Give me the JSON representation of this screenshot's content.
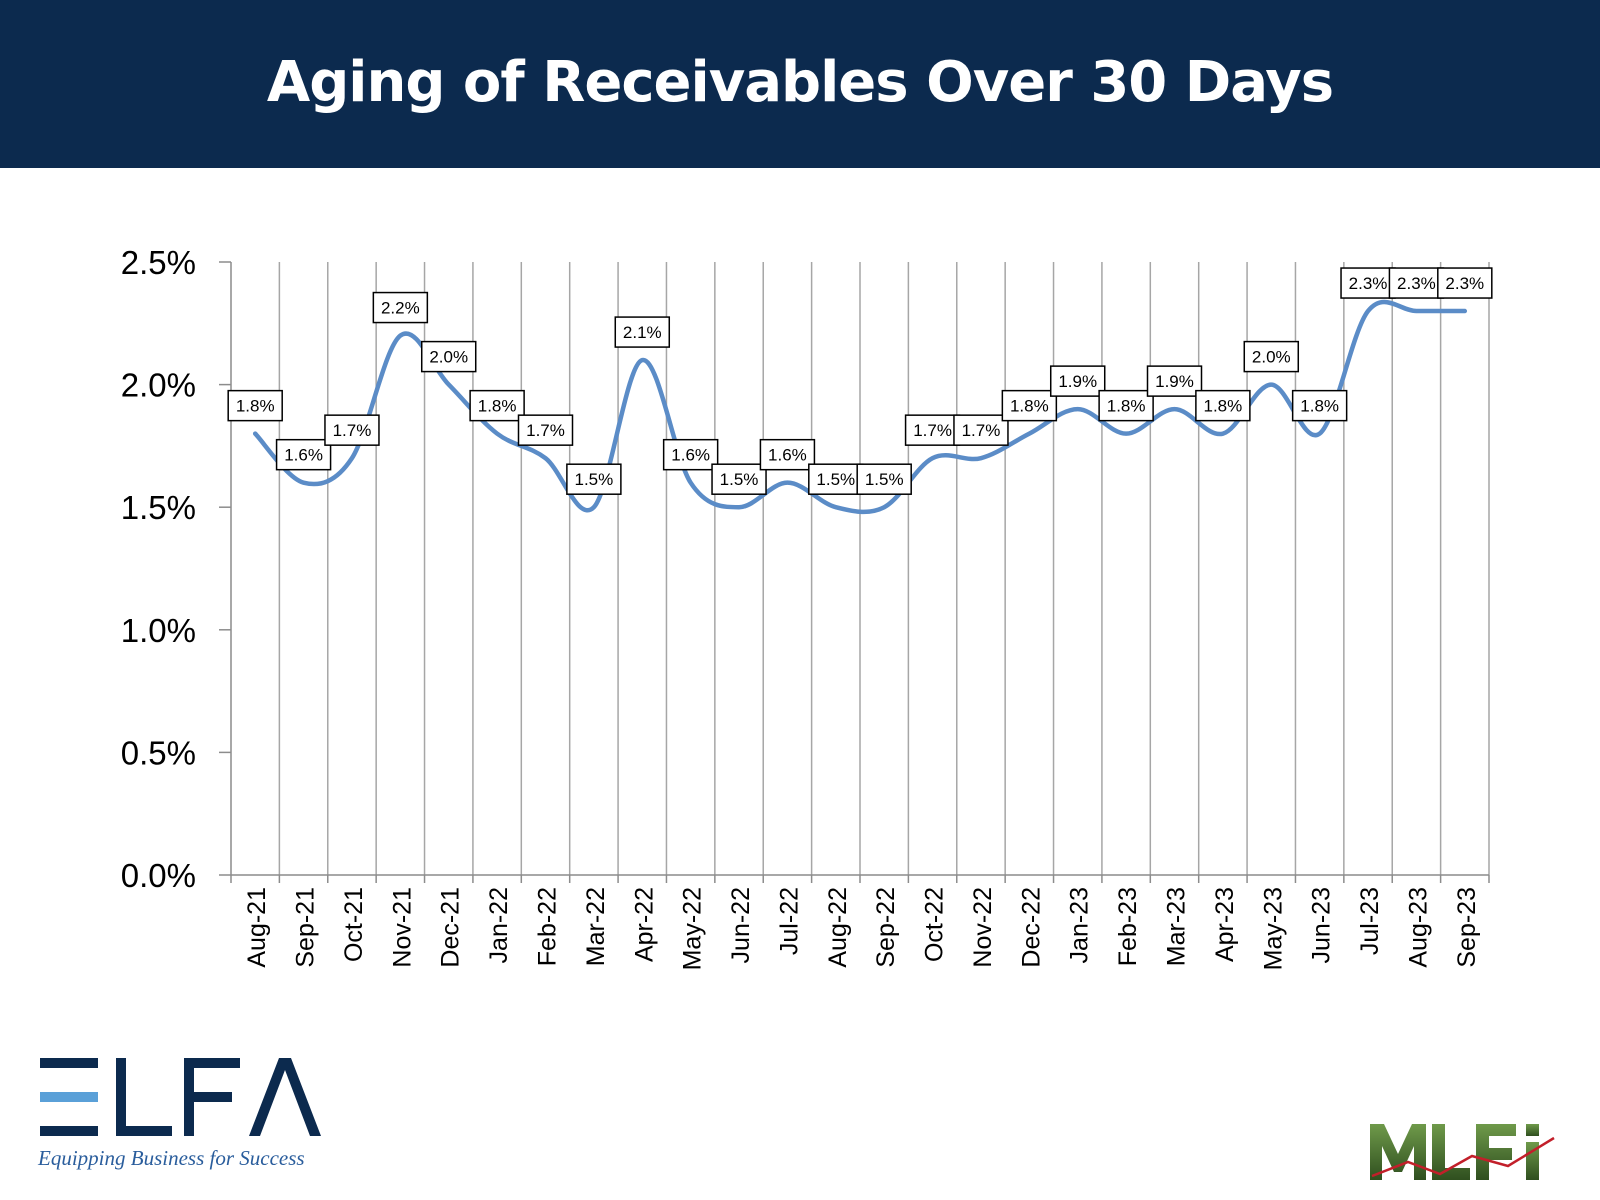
{
  "header": {
    "title": "Aging of Receivables Over 30 Days",
    "background": "#0c2a4e"
  },
  "chart_data": {
    "type": "line",
    "title": "Aging of Receivables Over 30 Days",
    "xlabel": "",
    "ylabel": "",
    "categories": [
      "Aug-21",
      "Sep-21",
      "Oct-21",
      "Nov-21",
      "Dec-21",
      "Jan-22",
      "Feb-22",
      "Mar-22",
      "Apr-22",
      "May-22",
      "Jun-22",
      "Jul-22",
      "Aug-22",
      "Sep-22",
      "Oct-22",
      "Nov-22",
      "Dec-22",
      "Jan-23",
      "Feb-23",
      "Mar-23",
      "Apr-23",
      "May-23",
      "Jun-23",
      "Jul-23",
      "Aug-23",
      "Sep-23"
    ],
    "series": [
      {
        "values": [
          1.8,
          1.6,
          1.7,
          2.2,
          2.0,
          1.8,
          1.7,
          1.5,
          2.1,
          1.6,
          1.5,
          1.6,
          1.5,
          1.5,
          1.7,
          1.7,
          1.8,
          1.9,
          1.8,
          1.9,
          1.8,
          2.0,
          1.8,
          2.3,
          2.3,
          2.3
        ],
        "labels": [
          "1.8%",
          "1.6%",
          "1.7%",
          "2.2%",
          "2.0%",
          "1.8%",
          "1.7%",
          "1.5%",
          "2.1%",
          "1.6%",
          "1.5%",
          "1.6%",
          "1.5%",
          "1.5%",
          "1.7%",
          "1.7%",
          "1.8%",
          "1.9%",
          "1.8%",
          "1.9%",
          "1.8%",
          "2.0%",
          "1.8%",
          "2.3%",
          "2.3%",
          "2.3%"
        ],
        "color": "#5b8cc7"
      }
    ],
    "ylim": [
      0,
      2.5
    ],
    "yticks": [
      0,
      0.5,
      1.0,
      1.5,
      2.0,
      2.5
    ],
    "ytick_labels": [
      "0.0%",
      "0.5%",
      "1.0%",
      "1.5%",
      "2.0%",
      "2.5%"
    ],
    "grid": "vertical",
    "smooth": true,
    "legend": "none"
  },
  "logos": {
    "elfa": {
      "text": "ELFA",
      "tagline": "Equipping Business for Success",
      "color": "#0c2a4e",
      "accent": "#5aa0d8"
    },
    "mlfi": {
      "text": "MLFi",
      "color": "#3f6b2a"
    }
  }
}
